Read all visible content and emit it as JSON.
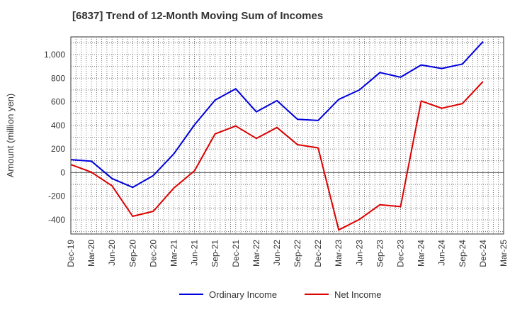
{
  "chart_data": {
    "type": "line",
    "title": "[6837]  Trend of 12-Month Moving Sum of Incomes",
    "xlabel": "",
    "ylabel": "Amount (million yen)",
    "categories": [
      "Dec-19",
      "Mar-20",
      "Jun-20",
      "Sep-20",
      "Dec-20",
      "Mar-21",
      "Jun-21",
      "Sep-21",
      "Dec-21",
      "Mar-22",
      "Jun-22",
      "Sep-22",
      "Dec-22",
      "Mar-23",
      "Jun-23",
      "Sep-23",
      "Dec-23",
      "Mar-24",
      "Jun-24",
      "Sep-24",
      "Dec-24",
      "Mar-25"
    ],
    "ylim": [
      -520,
      1150
    ],
    "yticks": [
      -400,
      -200,
      0,
      200,
      400,
      600,
      800,
      1000
    ],
    "ytick_labels": [
      "-400",
      "-200",
      "0",
      "200",
      "400",
      "600",
      "800",
      "1,000"
    ],
    "grid": true,
    "legend_position": "bottom-center",
    "series": [
      {
        "name": "Ordinary Income",
        "color": "#0000dd",
        "values": [
          110,
          97,
          -50,
          -125,
          -25,
          160,
          405,
          615,
          710,
          515,
          610,
          452,
          442,
          620,
          700,
          848,
          808,
          912,
          882,
          920,
          1110,
          null
        ]
      },
      {
        "name": "Net Income",
        "color": "#dd0000",
        "values": [
          68,
          3,
          -112,
          -370,
          -328,
          -130,
          15,
          328,
          395,
          290,
          382,
          237,
          210,
          -485,
          -397,
          -272,
          -288,
          607,
          545,
          585,
          772,
          null
        ]
      }
    ]
  }
}
